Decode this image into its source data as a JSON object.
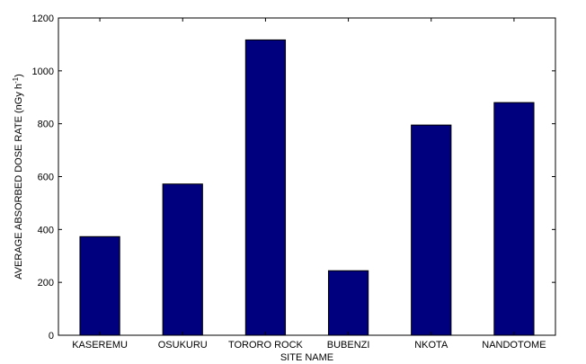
{
  "chart_data": {
    "type": "bar",
    "categories": [
      "KASEREMU",
      "OSUKURU",
      "TORORO ROCK",
      "BUBENZI",
      "NKOTA",
      "NANDOTOME"
    ],
    "values": [
      373,
      572,
      1117,
      244,
      795,
      880
    ],
    "xlabel": "SITE NAME",
    "ylabel": "AVERAGE ABSORBED DOSE RATE (nGy h",
    "ylabel_sup": "-1",
    "ylabel_tail": ")",
    "ylim": [
      0,
      1200
    ],
    "yticks": [
      0,
      200,
      400,
      600,
      800,
      1000,
      1200
    ],
    "grid": false,
    "bar_color": "#00007f"
  }
}
